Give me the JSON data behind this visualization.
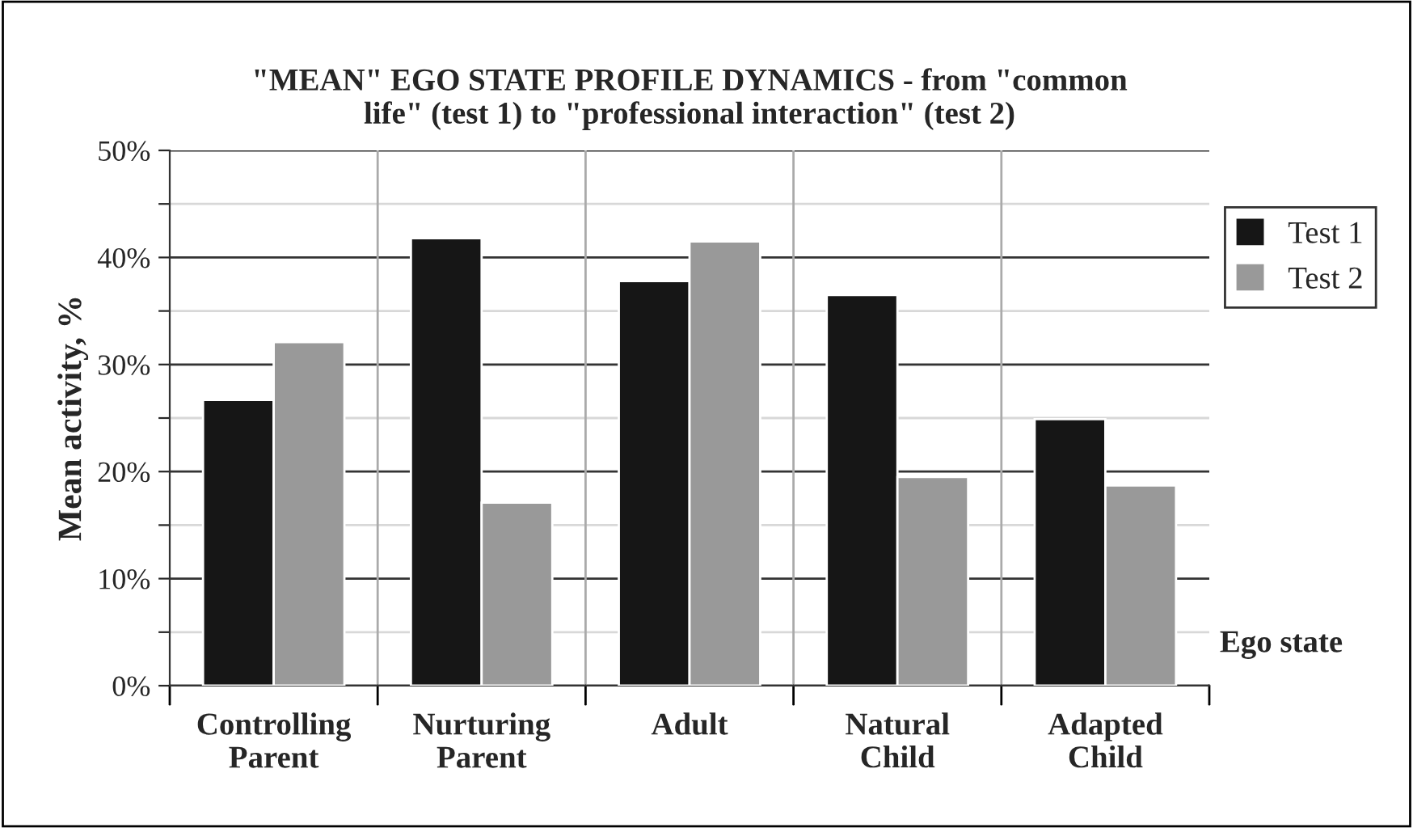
{
  "chart_data": {
    "type": "bar",
    "title": "\"MEAN\" EGO STATE PROFILE DYNAMICS - from \"common\nlife\" (test 1) to \"professional interaction\" (test 2)",
    "xlabel": "Ego state",
    "ylabel": "Mean activity, %",
    "categories": [
      "Controlling\nParent",
      "Nurturing\nParent",
      "Adult",
      "Natural\nChild",
      "Adapted\nChild"
    ],
    "series": [
      {
        "name": "Test 1",
        "color": "#161616",
        "values": [
          26.7,
          41.8,
          37.8,
          36.5,
          24.9
        ]
      },
      {
        "name": "Test 2",
        "color": "#999999",
        "values": [
          32.1,
          17.1,
          41.5,
          19.5,
          18.7
        ]
      }
    ],
    "ylim": [
      0,
      50
    ],
    "yticks": [
      {
        "value": 0,
        "label": "0%"
      },
      {
        "value": 5,
        "label": null
      },
      {
        "value": 10,
        "label": "10%"
      },
      {
        "value": 15,
        "label": null
      },
      {
        "value": 20,
        "label": "20%"
      },
      {
        "value": 25,
        "label": null
      },
      {
        "value": 30,
        "label": "30%"
      },
      {
        "value": 35,
        "label": null
      },
      {
        "value": 40,
        "label": "40%"
      },
      {
        "value": 45,
        "label": null
      },
      {
        "value": 50,
        "label": "50%"
      }
    ],
    "grid": true,
    "legend": "right"
  }
}
